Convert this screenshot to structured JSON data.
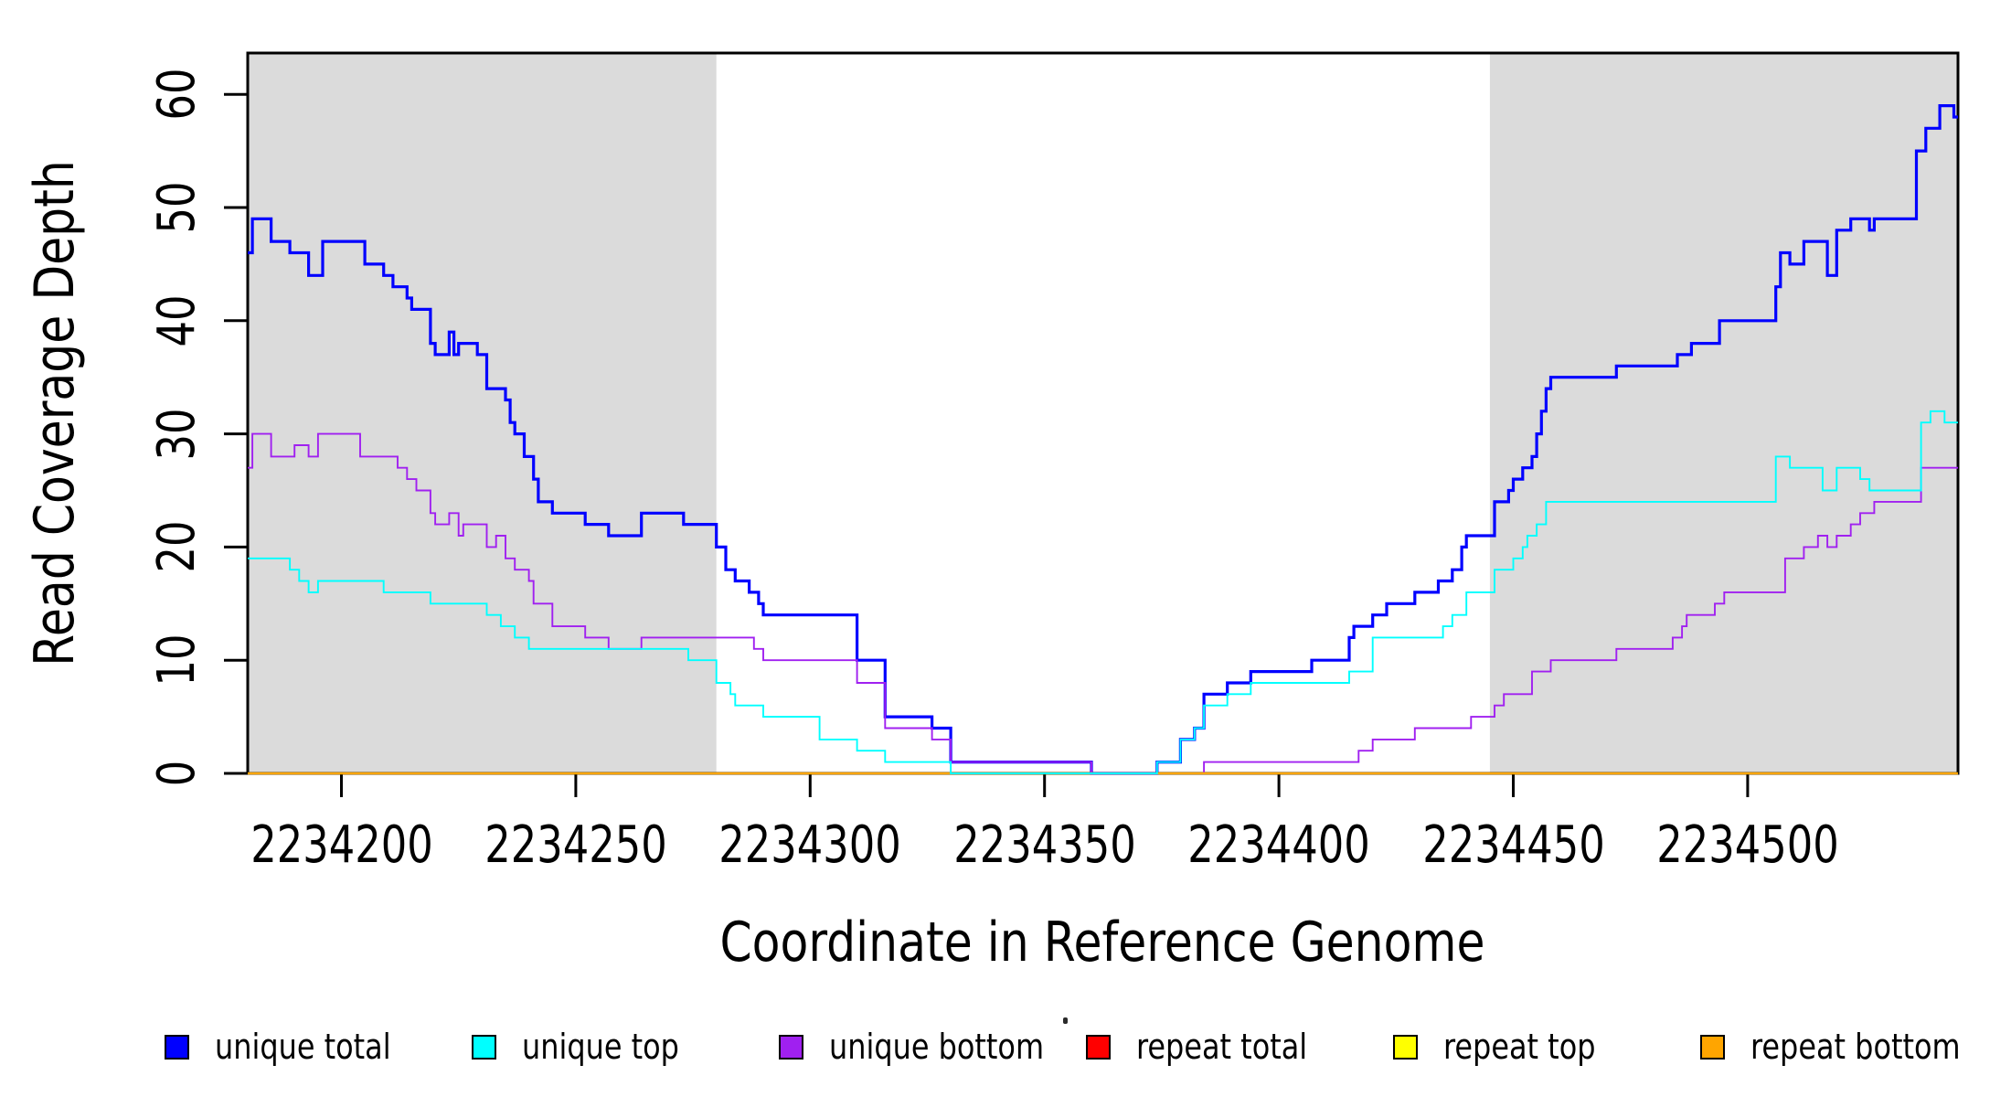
{
  "chart_data": {
    "type": "line",
    "step": true,
    "title": "",
    "xlabel": "Coordinate in Reference Genome",
    "ylabel": "Read Coverage Depth",
    "xlim": [
      2234180,
      2234545
    ],
    "ylim": [
      0,
      63.5
    ],
    "grid": false,
    "legend_position": "bottom",
    "x_ticks": [
      2234200,
      2234250,
      2234300,
      2234350,
      2234400,
      2234450,
      2234500
    ],
    "y_ticks": [
      0,
      10,
      20,
      30,
      40,
      50,
      60
    ],
    "shaded_regions": {
      "color": "#DBDBDB",
      "ranges": [
        [
          2234180,
          2234280
        ],
        [
          2234445,
          2234545
        ]
      ]
    },
    "series": [
      {
        "name": "unique total",
        "color": "#0000FF",
        "line_width": 3.2,
        "points": [
          [
            2234180,
            46
          ],
          [
            2234181,
            49
          ],
          [
            2234185,
            47
          ],
          [
            2234189,
            46
          ],
          [
            2234193,
            44
          ],
          [
            2234196,
            47
          ],
          [
            2234205,
            45
          ],
          [
            2234209,
            44
          ],
          [
            2234211,
            43
          ],
          [
            2234214,
            42
          ],
          [
            2234215,
            41
          ],
          [
            2234219,
            38
          ],
          [
            2234220,
            37
          ],
          [
            2234223,
            39
          ],
          [
            2234224,
            37
          ],
          [
            2234225,
            38
          ],
          [
            2234229,
            37
          ],
          [
            2234231,
            34
          ],
          [
            2234235,
            33
          ],
          [
            2234236,
            31
          ],
          [
            2234237,
            30
          ],
          [
            2234239,
            28
          ],
          [
            2234241,
            26
          ],
          [
            2234242,
            24
          ],
          [
            2234245,
            23
          ],
          [
            2234252,
            22
          ],
          [
            2234257,
            21
          ],
          [
            2234264,
            23
          ],
          [
            2234273,
            22
          ],
          [
            2234280,
            20
          ],
          [
            2234282,
            18
          ],
          [
            2234284,
            17
          ],
          [
            2234287,
            16
          ],
          [
            2234289,
            15
          ],
          [
            2234290,
            14
          ],
          [
            2234310,
            10
          ],
          [
            2234316,
            5
          ],
          [
            2234326,
            4
          ],
          [
            2234330,
            1
          ],
          [
            2234360,
            0
          ],
          [
            2234374,
            1
          ],
          [
            2234379,
            3
          ],
          [
            2234382,
            4
          ],
          [
            2234384,
            7
          ],
          [
            2234389,
            8
          ],
          [
            2234394,
            9
          ],
          [
            2234407,
            10
          ],
          [
            2234415,
            12
          ],
          [
            2234416,
            13
          ],
          [
            2234420,
            14
          ],
          [
            2234423,
            15
          ],
          [
            2234429,
            16
          ],
          [
            2234434,
            17
          ],
          [
            2234437,
            18
          ],
          [
            2234439,
            20
          ],
          [
            2234440,
            21
          ],
          [
            2234446,
            24
          ],
          [
            2234449,
            25
          ],
          [
            2234450,
            26
          ],
          [
            2234452,
            27
          ],
          [
            2234454,
            28
          ],
          [
            2234455,
            30
          ],
          [
            2234456,
            32
          ],
          [
            2234457,
            34
          ],
          [
            2234458,
            35
          ],
          [
            2234472,
            36
          ],
          [
            2234485,
            37
          ],
          [
            2234488,
            38
          ],
          [
            2234494,
            40
          ],
          [
            2234506,
            43
          ],
          [
            2234507,
            46
          ],
          [
            2234509,
            45
          ],
          [
            2234512,
            47
          ],
          [
            2234517,
            44
          ],
          [
            2234519,
            48
          ],
          [
            2234522,
            49
          ],
          [
            2234526,
            48
          ],
          [
            2234527,
            49
          ],
          [
            2234536,
            55
          ],
          [
            2234538,
            57
          ],
          [
            2234541,
            59
          ],
          [
            2234544,
            58
          ]
        ]
      },
      {
        "name": "unique top",
        "color": "#00FFFF",
        "line_width": 1.9,
        "points": [
          [
            2234180,
            19
          ],
          [
            2234189,
            18
          ],
          [
            2234191,
            17
          ],
          [
            2234193,
            16
          ],
          [
            2234195,
            17
          ],
          [
            2234209,
            16
          ],
          [
            2234219,
            15
          ],
          [
            2234231,
            14
          ],
          [
            2234234,
            13
          ],
          [
            2234237,
            12
          ],
          [
            2234240,
            11
          ],
          [
            2234274,
            10
          ],
          [
            2234280,
            8
          ],
          [
            2234283,
            7
          ],
          [
            2234284,
            6
          ],
          [
            2234290,
            5
          ],
          [
            2234302,
            3
          ],
          [
            2234310,
            2
          ],
          [
            2234316,
            1
          ],
          [
            2234330,
            0
          ],
          [
            2234374,
            1
          ],
          [
            2234379,
            3
          ],
          [
            2234382,
            4
          ],
          [
            2234384,
            6
          ],
          [
            2234389,
            7
          ],
          [
            2234394,
            8
          ],
          [
            2234415,
            9
          ],
          [
            2234420,
            12
          ],
          [
            2234435,
            13
          ],
          [
            2234437,
            14
          ],
          [
            2234440,
            16
          ],
          [
            2234446,
            18
          ],
          [
            2234450,
            19
          ],
          [
            2234452,
            20
          ],
          [
            2234453,
            21
          ],
          [
            2234455,
            22
          ],
          [
            2234457,
            24
          ],
          [
            2234506,
            28
          ],
          [
            2234509,
            27
          ],
          [
            2234516,
            25
          ],
          [
            2234519,
            27
          ],
          [
            2234524,
            26
          ],
          [
            2234526,
            25
          ],
          [
            2234537,
            31
          ],
          [
            2234539,
            32
          ],
          [
            2234542,
            31
          ]
        ]
      },
      {
        "name": "unique bottom",
        "color": "#A020F0",
        "line_width": 1.9,
        "points": [
          [
            2234180,
            27
          ],
          [
            2234181,
            30
          ],
          [
            2234185,
            28
          ],
          [
            2234190,
            29
          ],
          [
            2234193,
            28
          ],
          [
            2234195,
            30
          ],
          [
            2234204,
            28
          ],
          [
            2234212,
            27
          ],
          [
            2234214,
            26
          ],
          [
            2234216,
            25
          ],
          [
            2234219,
            23
          ],
          [
            2234220,
            22
          ],
          [
            2234223,
            23
          ],
          [
            2234225,
            21
          ],
          [
            2234226,
            22
          ],
          [
            2234231,
            20
          ],
          [
            2234233,
            21
          ],
          [
            2234235,
            19
          ],
          [
            2234237,
            18
          ],
          [
            2234240,
            17
          ],
          [
            2234241,
            15
          ],
          [
            2234245,
            13
          ],
          [
            2234252,
            12
          ],
          [
            2234257,
            11
          ],
          [
            2234264,
            12
          ],
          [
            2234288,
            11
          ],
          [
            2234290,
            10
          ],
          [
            2234310,
            8
          ],
          [
            2234316,
            4
          ],
          [
            2234326,
            3
          ],
          [
            2234330,
            1
          ],
          [
            2234360,
            0
          ],
          [
            2234384,
            1
          ],
          [
            2234417,
            2
          ],
          [
            2234420,
            3
          ],
          [
            2234429,
            4
          ],
          [
            2234441,
            5
          ],
          [
            2234446,
            6
          ],
          [
            2234448,
            7
          ],
          [
            2234454,
            9
          ],
          [
            2234458,
            10
          ],
          [
            2234472,
            11
          ],
          [
            2234484,
            12
          ],
          [
            2234486,
            13
          ],
          [
            2234487,
            14
          ],
          [
            2234493,
            15
          ],
          [
            2234495,
            16
          ],
          [
            2234508,
            19
          ],
          [
            2234512,
            20
          ],
          [
            2234515,
            21
          ],
          [
            2234517,
            20
          ],
          [
            2234519,
            21
          ],
          [
            2234522,
            22
          ],
          [
            2234524,
            23
          ],
          [
            2234527,
            24
          ],
          [
            2234537,
            27
          ]
        ]
      },
      {
        "name": "repeat total",
        "color": "#FF0000",
        "line_width": 1.9,
        "points": [
          [
            2234180,
            0
          ]
        ]
      },
      {
        "name": "repeat top",
        "color": "#FFFF00",
        "line_width": 1.9,
        "points": [
          [
            2234180,
            0
          ]
        ]
      },
      {
        "name": "repeat bottom",
        "color": "#FFA500",
        "line_width": 2.4,
        "points": [
          [
            2234180,
            0
          ]
        ]
      }
    ],
    "legend": [
      {
        "label": "unique total",
        "color": "#0000FF"
      },
      {
        "label": "unique top",
        "color": "#00FFFF"
      },
      {
        "label": "unique bottom",
        "color": "#A020F0"
      },
      {
        "label": "repeat total",
        "color": "#FF0000"
      },
      {
        "label": "repeat top",
        "color": "#FFFF00"
      },
      {
        "label": "repeat bottom",
        "color": "#FFA500"
      }
    ]
  }
}
